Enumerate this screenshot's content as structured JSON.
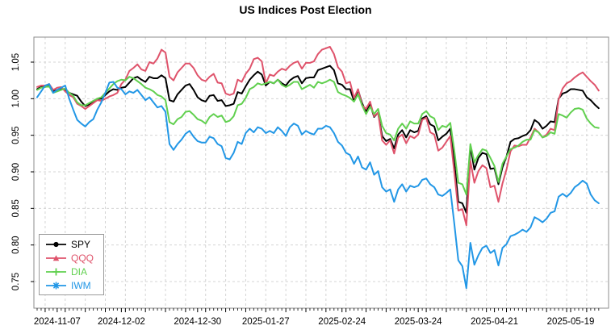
{
  "title": "US Indices Post Election",
  "chart_data": {
    "type": "line",
    "title": "US Indices Post Election",
    "x_axis": {
      "tick_labels": [
        "2024-11-07",
        "2024-12-02",
        "2024-12-30",
        "2025-01-27",
        "2025-02-24",
        "2025-03-24",
        "2025-04-21",
        "2025-05-19"
      ],
      "tick_indices": [
        5,
        21,
        40,
        57,
        76,
        95,
        114,
        133
      ],
      "n_points": 141,
      "minor_ticks": "daily",
      "gridlines": "weekly"
    },
    "y_axis": {
      "tick_labels": [
        "0.75",
        "0.80",
        "0.85",
        "0.90",
        "0.95",
        "1.00",
        "1.05"
      ],
      "tick_values": [
        0.75,
        0.8,
        0.85,
        0.9,
        0.95,
        1.0,
        1.05
      ],
      "range_shown": [
        0.714,
        1.084
      ]
    },
    "grid": true,
    "legend_position": "bottom-left",
    "series": [
      {
        "name": "SPY",
        "color": "#000000",
        "marker": "circle",
        "values": [
          1.013,
          1.016,
          1.017,
          1.018,
          1.01,
          1.012,
          1.014,
          1.012,
          1.008,
          1.006,
          1.004,
          0.996,
          0.99,
          0.992,
          0.996,
          1.0,
          1.0,
          1.005,
          1.01,
          1.013,
          1.012,
          1.015,
          1.016,
          1.022,
          1.028,
          1.03,
          1.026,
          1.023,
          1.03,
          1.028,
          1.028,
          1.032,
          1.028,
          0.998,
          0.996,
          1.006,
          1.012,
          1.018,
          1.02,
          1.012,
          1.002,
          0.998,
          0.996,
          1.004,
          1.005,
          0.997,
          0.998,
          0.99,
          0.991,
          0.993,
          1.009,
          1.007,
          1.017,
          1.026,
          1.032,
          1.037,
          1.033,
          1.018,
          1.023,
          1.021,
          1.026,
          1.021,
          1.018,
          1.025,
          1.029,
          1.031,
          1.021,
          1.028,
          1.029,
          1.029,
          1.039,
          1.041,
          1.043,
          1.045,
          1.039,
          1.021,
          1.019,
          1.013,
          1.013,
          0.997,
          1.012,
          0.994,
          0.982,
          0.993,
          0.975,
          0.981,
          0.949,
          0.942,
          0.945,
          0.932,
          0.951,
          0.957,
          0.947,
          0.957,
          0.954,
          0.956,
          0.973,
          0.976,
          0.965,
          0.962,
          0.943,
          0.948,
          0.952,
          0.959,
          0.913,
          0.859,
          0.857,
          0.844,
          0.935,
          0.903,
          0.919,
          0.926,
          0.924,
          0.904,
          0.905,
          0.883,
          0.906,
          0.921,
          0.941,
          0.945,
          0.946,
          0.949,
          0.951,
          0.957,
          0.971,
          0.967,
          0.959,
          0.963,
          0.969,
          0.968,
          1.0,
          1.007,
          1.009,
          1.013,
          1.013,
          1.012,
          1.011,
          1.002,
          0.998,
          0.992,
          0.987
        ]
      },
      {
        "name": "QQQ",
        "color": "#DF536B",
        "marker": "triangle",
        "values": [
          1.016,
          1.018,
          1.018,
          1.02,
          1.012,
          1.015,
          1.016,
          1.01,
          1.005,
          1.002,
          0.993,
          0.99,
          0.986,
          0.99,
          0.994,
          0.998,
          0.997,
          1.0,
          1.003,
          1.005,
          1.008,
          1.02,
          1.026,
          1.038,
          1.042,
          1.047,
          1.04,
          1.038,
          1.05,
          1.048,
          1.055,
          1.067,
          1.063,
          1.03,
          1.025,
          1.036,
          1.042,
          1.048,
          1.048,
          1.042,
          1.032,
          1.026,
          1.024,
          1.03,
          1.034,
          1.022,
          1.021,
          1.007,
          1.005,
          1.007,
          1.026,
          1.023,
          1.034,
          1.041,
          1.054,
          1.056,
          1.051,
          1.021,
          1.033,
          1.031,
          1.037,
          1.041,
          1.039,
          1.045,
          1.049,
          1.051,
          1.041,
          1.049,
          1.049,
          1.051,
          1.061,
          1.067,
          1.069,
          1.071,
          1.061,
          1.043,
          1.037,
          1.021,
          1.023,
          1.001,
          1.013,
          0.991,
          0.986,
          0.996,
          0.976,
          0.981,
          0.943,
          0.937,
          0.943,
          0.925,
          0.947,
          0.951,
          0.939,
          0.949,
          0.946,
          0.951,
          0.971,
          0.974,
          0.954,
          0.951,
          0.929,
          0.933,
          0.941,
          0.949,
          0.899,
          0.847,
          0.849,
          0.827,
          0.915,
          0.885,
          0.901,
          0.909,
          0.905,
          0.879,
          0.881,
          0.859,
          0.884,
          0.903,
          0.928,
          0.936,
          0.935,
          0.937,
          0.937,
          0.947,
          0.959,
          0.954,
          0.947,
          0.951,
          0.959,
          0.957,
          0.999,
          1.014,
          1.021,
          1.024,
          1.029,
          1.033,
          1.036,
          1.03,
          1.024,
          1.019,
          1.011
        ]
      },
      {
        "name": "DIA",
        "color": "#61D04F",
        "marker": "plus",
        "values": [
          1.012,
          1.015,
          1.016,
          1.017,
          1.008,
          1.01,
          1.012,
          1.014,
          1.008,
          1.004,
          0.995,
          0.991,
          0.991,
          0.994,
          0.997,
          1.0,
          1.002,
          1.008,
          1.014,
          1.02,
          1.024,
          1.026,
          1.025,
          1.03,
          1.028,
          1.024,
          1.02,
          1.015,
          1.013,
          1.01,
          1.005,
          1.003,
          0.998,
          0.968,
          0.965,
          0.972,
          0.975,
          0.982,
          0.983,
          0.978,
          0.972,
          0.97,
          0.966,
          0.975,
          0.979,
          0.975,
          0.977,
          0.968,
          0.97,
          0.976,
          0.991,
          0.993,
          1.001,
          1.013,
          1.016,
          1.021,
          1.019,
          1.021,
          1.023,
          1.021,
          1.026,
          1.019,
          1.016,
          1.019,
          1.023,
          1.023,
          1.013,
          1.016,
          1.019,
          1.015,
          1.023,
          1.021,
          1.023,
          1.026,
          1.023,
          1.009,
          1.006,
          1.004,
          1.001,
          0.996,
          1.006,
          0.991,
          0.979,
          0.989,
          0.979,
          0.986,
          0.963,
          0.953,
          0.951,
          0.943,
          0.959,
          0.966,
          0.959,
          0.969,
          0.966,
          0.966,
          0.979,
          0.983,
          0.976,
          0.973,
          0.957,
          0.963,
          0.961,
          0.967,
          0.929,
          0.885,
          0.883,
          0.869,
          0.938,
          0.913,
          0.923,
          0.931,
          0.929,
          0.919,
          0.908,
          0.886,
          0.911,
          0.921,
          0.931,
          0.933,
          0.936,
          0.941,
          0.944,
          0.944,
          0.957,
          0.954,
          0.947,
          0.949,
          0.954,
          0.952,
          0.979,
          0.977,
          0.974,
          0.981,
          0.986,
          0.987,
          0.985,
          0.973,
          0.966,
          0.961,
          0.96
        ]
      },
      {
        "name": "IWM",
        "color": "#2297E6",
        "marker": "asterisk",
        "values": [
          1.002,
          1.01,
          1.018,
          1.02,
          1.008,
          1.012,
          1.015,
          1.018,
          1.0,
          0.985,
          0.971,
          0.966,
          0.962,
          0.968,
          0.972,
          0.985,
          0.995,
          1.008,
          1.022,
          1.023,
          1.015,
          1.013,
          1.006,
          1.01,
          1.008,
          1.012,
          1.005,
          0.998,
          1.002,
          0.995,
          0.988,
          0.99,
          0.982,
          0.938,
          0.93,
          0.938,
          0.944,
          0.952,
          0.956,
          0.948,
          0.942,
          0.94,
          0.94,
          0.948,
          0.946,
          0.938,
          0.935,
          0.919,
          0.917,
          0.926,
          0.941,
          0.938,
          0.953,
          0.959,
          0.954,
          0.961,
          0.959,
          0.953,
          0.956,
          0.953,
          0.961,
          0.956,
          0.949,
          0.961,
          0.966,
          0.963,
          0.951,
          0.956,
          0.953,
          0.951,
          0.959,
          0.959,
          0.963,
          0.961,
          0.953,
          0.941,
          0.936,
          0.926,
          0.923,
          0.911,
          0.921,
          0.906,
          0.903,
          0.913,
          0.896,
          0.901,
          0.879,
          0.873,
          0.876,
          0.859,
          0.876,
          0.883,
          0.873,
          0.881,
          0.879,
          0.881,
          0.889,
          0.891,
          0.883,
          0.879,
          0.869,
          0.867,
          0.871,
          0.876,
          0.829,
          0.779,
          0.771,
          0.741,
          0.803,
          0.773,
          0.786,
          0.796,
          0.799,
          0.789,
          0.793,
          0.772,
          0.796,
          0.801,
          0.812,
          0.814,
          0.817,
          0.821,
          0.818,
          0.824,
          0.838,
          0.835,
          0.831,
          0.836,
          0.844,
          0.846,
          0.866,
          0.87,
          0.866,
          0.871,
          0.879,
          0.883,
          0.888,
          0.884,
          0.869,
          0.861,
          0.857
        ]
      }
    ]
  }
}
